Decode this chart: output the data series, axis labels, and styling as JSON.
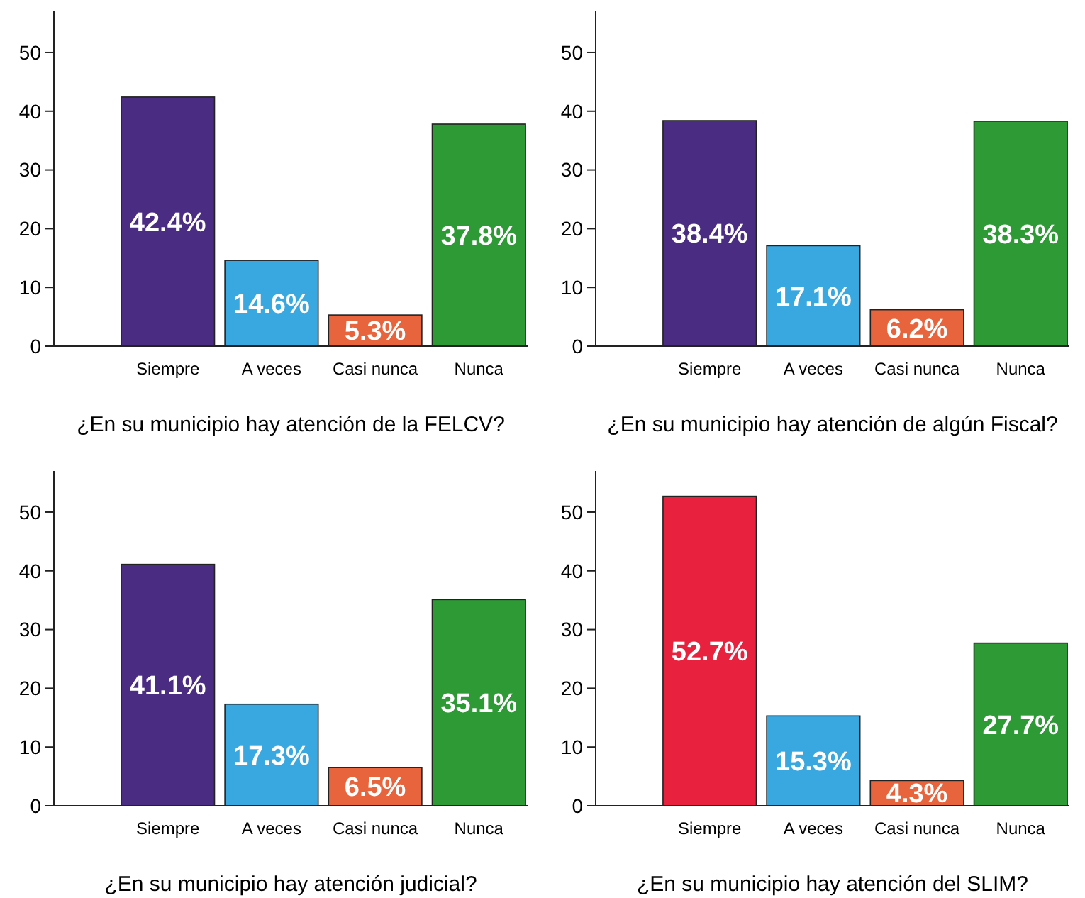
{
  "chart_data": [
    {
      "type": "bar",
      "xlabel": "¿En su municipio hay atención de la FELCV?",
      "categories": [
        "Siempre",
        "A veces",
        "Casi nunca",
        "Nunca"
      ],
      "values": [
        42.4,
        14.6,
        5.3,
        37.8
      ],
      "colors": [
        "#4a2c82",
        "#3aa8e0",
        "#e8643c",
        "#2e9a36"
      ],
      "value_labels": [
        "42.4%",
        "14.6%",
        "5.3%",
        "37.8%"
      ],
      "ylim": [
        0,
        57
      ],
      "yticks": [
        0,
        10,
        20,
        30,
        40,
        50
      ]
    },
    {
      "type": "bar",
      "xlabel": "¿En su municipio hay atención de algún Fiscal?",
      "categories": [
        "Siempre",
        "A veces",
        "Casi nunca",
        "Nunca"
      ],
      "values": [
        38.4,
        17.1,
        6.2,
        38.3
      ],
      "colors": [
        "#4a2c82",
        "#3aa8e0",
        "#e8643c",
        "#2e9a36"
      ],
      "value_labels": [
        "38.4%",
        "17.1%",
        "6.2%",
        "38.3%"
      ],
      "ylim": [
        0,
        57
      ],
      "yticks": [
        0,
        10,
        20,
        30,
        40,
        50
      ]
    },
    {
      "type": "bar",
      "xlabel": "¿En su municipio hay atención judicial?",
      "categories": [
        "Siempre",
        "A veces",
        "Casi nunca",
        "Nunca"
      ],
      "values": [
        41.1,
        17.3,
        6.5,
        35.1
      ],
      "colors": [
        "#4a2c82",
        "#3aa8e0",
        "#e8643c",
        "#2e9a36"
      ],
      "value_labels": [
        "41.1%",
        "17.3%",
        "6.5%",
        "35.1%"
      ],
      "ylim": [
        0,
        57
      ],
      "yticks": [
        0,
        10,
        20,
        30,
        40,
        50
      ]
    },
    {
      "type": "bar",
      "xlabel": "¿En su municipio hay atención del SLIM?",
      "categories": [
        "Siempre",
        "A veces",
        "Casi nunca",
        "Nunca"
      ],
      "values": [
        52.7,
        15.3,
        4.3,
        27.7
      ],
      "colors": [
        "#e8223e",
        "#3aa8e0",
        "#e8643c",
        "#2e9a36"
      ],
      "value_labels": [
        "52.7%",
        "15.3%",
        "4.3%",
        "27.7%"
      ],
      "ylim": [
        0,
        57
      ],
      "yticks": [
        0,
        10,
        20,
        30,
        40,
        50
      ]
    }
  ]
}
